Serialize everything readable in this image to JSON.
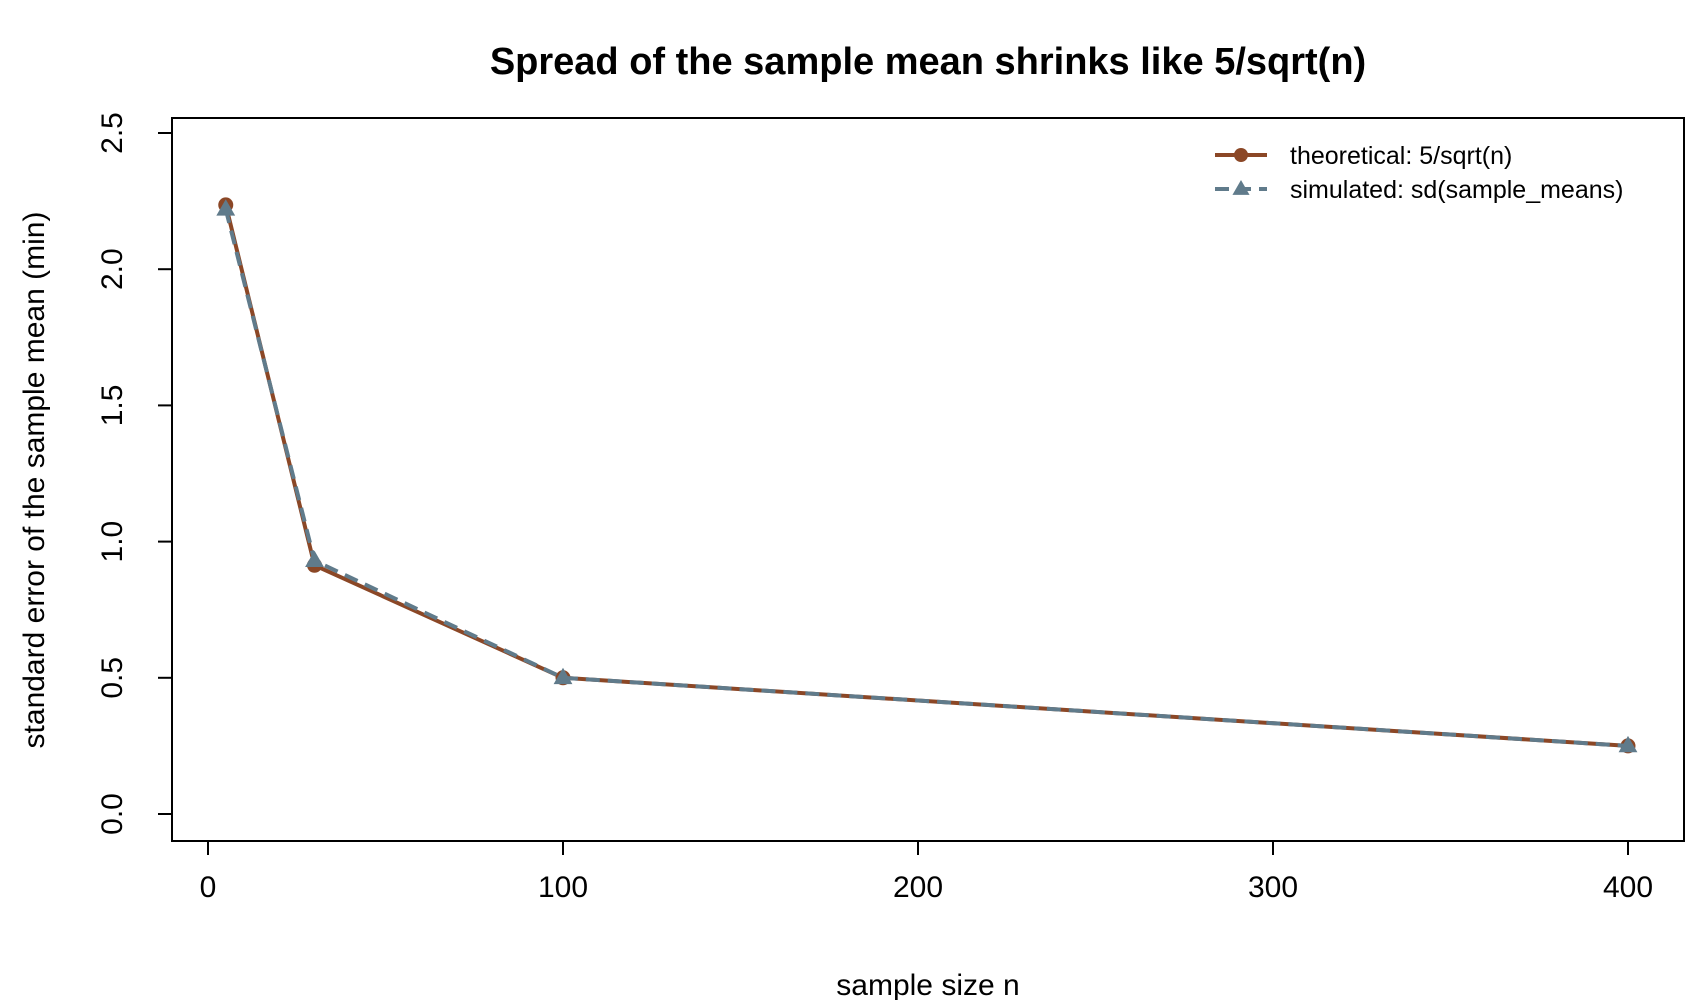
{
  "chart_data": {
    "type": "line",
    "title": "Spread of the sample mean shrinks like 5/sqrt(n)",
    "xlabel": "sample size n",
    "ylabel": "standard error of the sample mean (min)",
    "xlim": [
      -5,
      405
    ],
    "ylim": [
      -0.1,
      2.55
    ],
    "x_ticks": [
      0,
      100,
      200,
      300,
      400
    ],
    "x_tick_labels": [
      "0",
      "100",
      "200",
      "300",
      "400"
    ],
    "y_ticks": [
      0.0,
      0.5,
      1.0,
      1.5,
      2.0,
      2.5
    ],
    "y_tick_labels": [
      "0.0",
      "0.5",
      "1.0",
      "1.5",
      "2.0",
      "2.5"
    ],
    "grid": false,
    "legend_position": "top-right",
    "x": [
      5,
      30,
      100,
      400
    ],
    "series": [
      {
        "name": "theoretical: 5/sqrt(n)",
        "values": [
          2.236,
          0.913,
          0.5,
          0.25
        ],
        "color": "#8B4726",
        "marker": "circle",
        "line_style": "solid"
      },
      {
        "name": "simulated: sd(sample_means)",
        "values": [
          2.22,
          0.93,
          0.5,
          0.25
        ],
        "color": "#607B8B",
        "marker": "triangle",
        "line_style": "dashed"
      }
    ]
  }
}
